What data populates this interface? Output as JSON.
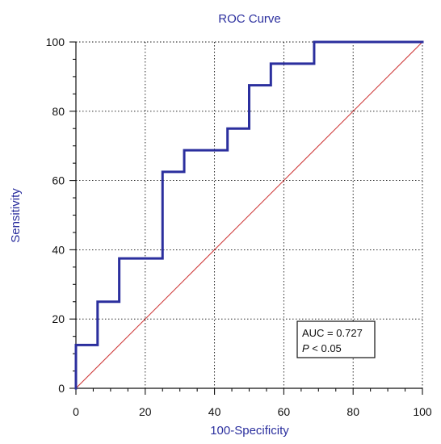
{
  "chart_data": {
    "type": "line",
    "title": "ROC Curve",
    "xlabel": "100-Specificity",
    "ylabel": "Sensitivity",
    "xlim": [
      0,
      100
    ],
    "ylim": [
      0,
      100
    ],
    "grid": true,
    "x_ticks": [
      0,
      20,
      40,
      60,
      80,
      100
    ],
    "y_ticks": [
      0,
      20,
      40,
      60,
      80,
      100
    ],
    "series": [
      {
        "points": [
          [
            0,
            0
          ],
          [
            0,
            12.5
          ],
          [
            6.25,
            12.5
          ],
          [
            6.25,
            25
          ],
          [
            12.5,
            25
          ],
          [
            12.5,
            37.5
          ],
          [
            25,
            37.5
          ],
          [
            25,
            62.5
          ],
          [
            31.25,
            62.5
          ],
          [
            31.25,
            68.75
          ],
          [
            43.75,
            68.75
          ],
          [
            43.75,
            75
          ],
          [
            50,
            75
          ],
          [
            50,
            87.5
          ],
          [
            56.25,
            87.5
          ],
          [
            56.25,
            93.75
          ],
          [
            68.75,
            93.75
          ],
          [
            68.75,
            100
          ],
          [
            100,
            100
          ]
        ],
        "color": "#2b2f9e"
      },
      {
        "points": [
          [
            0,
            0
          ],
          [
            100,
            100
          ]
        ],
        "color": "#cc3333"
      }
    ],
    "annotations": [
      "AUC = 0.727",
      "P",
      " < 0.05"
    ],
    "annotation_position": "bottom-right"
  }
}
